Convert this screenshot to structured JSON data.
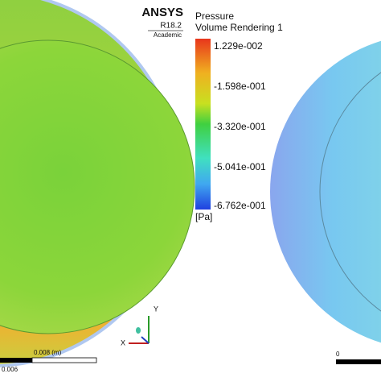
{
  "logo": {
    "brand": "ANSYS",
    "version": "R18.2",
    "edition": "Academic"
  },
  "legend": {
    "title": "Pressure",
    "subtitle": "Volume Rendering 1",
    "labels": [
      "1.229e-002",
      "-1.598e-001",
      "-3.320e-001",
      "-5.041e-001",
      "-6.762e-001"
    ],
    "unit": "[Pa]"
  },
  "scale_left": {
    "top": "0.008 (m)",
    "bottom": "0.006"
  },
  "scale_right": {
    "top": "0"
  },
  "triad": {
    "y": "Y",
    "x": "X"
  }
}
